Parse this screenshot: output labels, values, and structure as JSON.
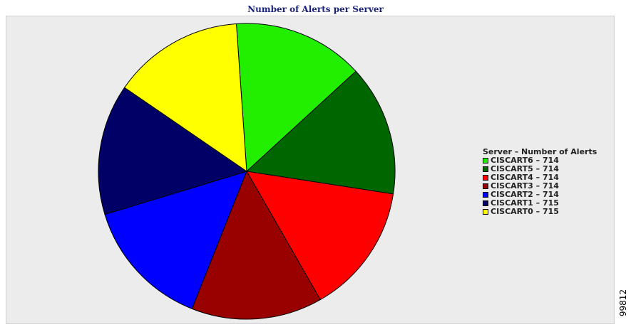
{
  "chart_data": {
    "type": "pie",
    "title": "Number of Alerts per Server",
    "legend_title": "Server – Number of Alerts",
    "legend_position": "right",
    "slices": [
      {
        "label": "CISCART6 – 714",
        "value": 714,
        "color": "#22ee00"
      },
      {
        "label": "CISCART5 – 714",
        "value": 714,
        "color": "#006600"
      },
      {
        "label": "CISCART4 – 714",
        "value": 714,
        "color": "#ff0000"
      },
      {
        "label": "CISCART3 – 714",
        "value": 714,
        "color": "#990000"
      },
      {
        "label": "CISCART2 – 714",
        "value": 714,
        "color": "#0000ff"
      },
      {
        "label": "CISCART1 – 715",
        "value": 715,
        "color": "#000066"
      },
      {
        "label": "CISCART0 – 715",
        "value": 715,
        "color": "#ffff00"
      }
    ]
  },
  "figure_id": "99812"
}
